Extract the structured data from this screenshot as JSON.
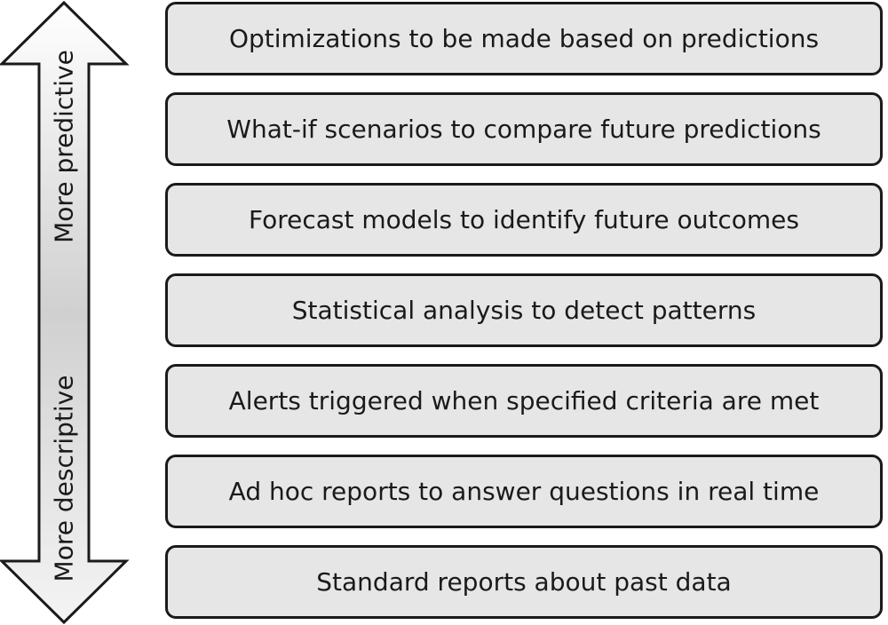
{
  "axis": {
    "top_label": "More predictive",
    "bottom_label": "More descriptive"
  },
  "levels": [
    {
      "label": "Optimizations to be made based on predictions"
    },
    {
      "label": "What-if scenarios to compare future predictions"
    },
    {
      "label": "Forecast models to identify future outcomes"
    },
    {
      "label": "Statistical analysis to detect patterns"
    },
    {
      "label": "Alerts triggered when specified criteria are met"
    },
    {
      "label": "Ad hoc reports to answer questions in real time"
    },
    {
      "label": "Standard reports about past data"
    }
  ],
  "colors": {
    "box_fill": "#e6e6e6",
    "outline": "#1a1a1a",
    "arrow_gradient_top": "#ffffff",
    "arrow_gradient_bottom": "#a9a9a9"
  }
}
